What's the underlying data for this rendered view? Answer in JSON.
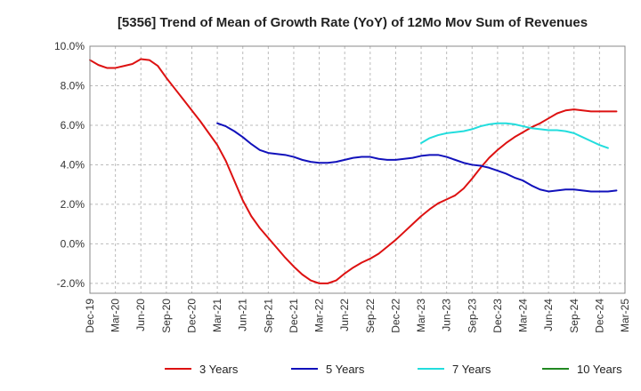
{
  "chart_data": {
    "type": "line",
    "title": "[5356]  Trend of Mean of Growth Rate (YoY) of 12Mo Mov Sum of Revenues",
    "xlabel": "",
    "ylabel": "",
    "ylim": [
      -2.5,
      10.0
    ],
    "yticks": [
      -2.0,
      0.0,
      2.0,
      4.0,
      6.0,
      8.0,
      10.0
    ],
    "ytick_labels": [
      "-2.0%",
      "0.0%",
      "2.0%",
      "4.0%",
      "6.0%",
      "8.0%",
      "10.0%"
    ],
    "x_tick_labels": [
      "Dec-19",
      "Mar-20",
      "Jun-20",
      "Sep-20",
      "Dec-20",
      "Mar-21",
      "Jun-21",
      "Sep-21",
      "Dec-21",
      "Mar-22",
      "Jun-22",
      "Sep-22",
      "Dec-22",
      "Mar-23",
      "Jun-23",
      "Sep-23",
      "Dec-23",
      "Mar-24",
      "Jun-24",
      "Sep-24",
      "Dec-24",
      "Mar-25"
    ],
    "x_range_months": [
      0,
      63
    ],
    "grid": true,
    "legend_position": "bottom",
    "series": [
      {
        "name": "3 Years",
        "color": "#dd1111",
        "start_month": 0,
        "values": [
          9.3,
          9.05,
          8.9,
          8.9,
          9.0,
          9.1,
          9.35,
          9.3,
          9.0,
          8.4,
          7.85,
          7.3,
          6.75,
          6.2,
          5.6,
          5.0,
          4.2,
          3.2,
          2.2,
          1.4,
          0.8,
          0.3,
          -0.2,
          -0.7,
          -1.15,
          -1.55,
          -1.85,
          -2.0,
          -2.0,
          -1.85,
          -1.5,
          -1.2,
          -0.95,
          -0.75,
          -0.5,
          -0.15,
          0.2,
          0.6,
          1.0,
          1.4,
          1.75,
          2.05,
          2.25,
          2.45,
          2.8,
          3.3,
          3.85,
          4.35,
          4.75,
          5.1,
          5.4,
          5.65,
          5.9,
          6.1,
          6.35,
          6.6,
          6.75,
          6.8,
          6.75,
          6.7,
          6.7,
          6.7,
          6.7
        ]
      },
      {
        "name": "5 Years",
        "color": "#1111bb",
        "start_month": 15,
        "values": [
          6.1,
          5.95,
          5.7,
          5.4,
          5.05,
          4.75,
          4.6,
          4.55,
          4.5,
          4.4,
          4.25,
          4.15,
          4.1,
          4.1,
          4.15,
          4.25,
          4.35,
          4.4,
          4.4,
          4.3,
          4.25,
          4.25,
          4.3,
          4.35,
          4.45,
          4.5,
          4.5,
          4.4,
          4.25,
          4.1,
          4.0,
          3.95,
          3.85,
          3.7,
          3.55,
          3.35,
          3.2,
          2.95,
          2.75,
          2.65,
          2.7,
          2.75,
          2.75,
          2.7,
          2.65,
          2.65,
          2.65,
          2.7
        ]
      },
      {
        "name": "7 Years",
        "color": "#22dddd",
        "start_month": 39,
        "values": [
          5.1,
          5.35,
          5.5,
          5.6,
          5.65,
          5.7,
          5.8,
          5.95,
          6.05,
          6.1,
          6.1,
          6.05,
          5.95,
          5.85,
          5.8,
          5.75,
          5.75,
          5.7,
          5.6,
          5.4,
          5.2,
          5.0,
          4.85
        ]
      },
      {
        "name": "10 Years",
        "color": "#228822",
        "start_month": 0,
        "values": []
      }
    ]
  }
}
